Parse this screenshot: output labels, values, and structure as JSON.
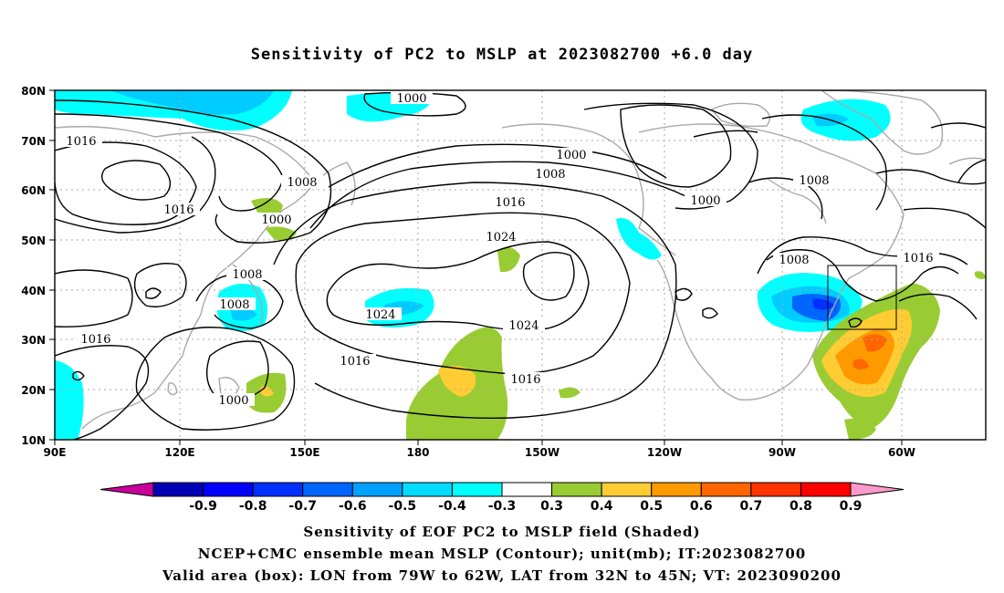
{
  "title": "Sensitivity of PC2 to MSLP at 2023082700 +6.0 day",
  "map": {
    "lon_labels": [
      "90E",
      "120E",
      "150E",
      "180",
      "150W",
      "120W",
      "90W",
      "60W"
    ],
    "lat_labels": [
      "80N",
      "70N",
      "60N",
      "50N",
      "40N",
      "30N",
      "20N",
      "10N"
    ],
    "contour_labels": [
      "1000",
      "1016",
      "1008",
      "1016",
      "1000",
      "1008",
      "1008",
      "1016",
      "1000",
      "1024",
      "1000",
      "1008",
      "1000",
      "1008",
      "1016",
      "1024",
      "1024",
      "1016",
      "1016",
      "1008",
      "1016",
      "1000",
      "1016"
    ],
    "valid_box": {
      "lon_from": "79W",
      "lon_to": "62W",
      "lat_from": "32N",
      "lat_to": "45N"
    }
  },
  "colorbar": {
    "labels": [
      "-0.9",
      "-0.8",
      "-0.7",
      "-0.6",
      "-0.5",
      "-0.4",
      "-0.3",
      "0.3",
      "0.4",
      "0.5",
      "0.6",
      "0.7",
      "0.8",
      "0.9"
    ],
    "colors": [
      "#c8009a",
      "#0000b4",
      "#0000ff",
      "#0030ff",
      "#0064ff",
      "#00a0ff",
      "#00dcff",
      "#00ffff",
      "#ffffff",
      "#99cc33",
      "#ffcc33",
      "#ff9900",
      "#ff6600",
      "#ff3300",
      "#ff0000",
      "#ff99cc"
    ]
  },
  "footer": {
    "line1": "Sensitivity of EOF PC2 to MSLP field (Shaded)",
    "line2": "NCEP+CMC ensemble mean MSLP (Contour); unit(mb); IT:2023082700",
    "line3": "Valid area (box): LON from 79W to 62W, LAT from 32N to 45N; VT: 2023090200"
  }
}
